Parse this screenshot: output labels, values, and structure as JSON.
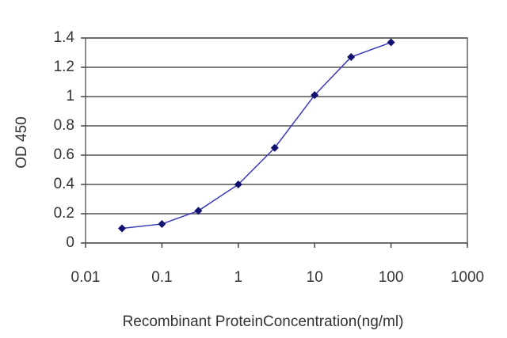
{
  "chart_data": {
    "type": "line",
    "x_label": "Recombinant ProteinConcentration(ng/ml)",
    "y_label": "OD 450",
    "xscale": "log",
    "x": [
      0.03,
      0.1,
      0.3,
      1,
      3,
      10,
      30,
      100
    ],
    "series": [
      {
        "color": "#3a3ab8",
        "marker_color": "#101070",
        "values": [
          0.1,
          0.13,
          0.22,
          0.4,
          0.65,
          1.01,
          1.27,
          1.37
        ]
      }
    ],
    "xlim": [
      0.01,
      1000
    ],
    "xticks": [
      0.01,
      0.1,
      1,
      10,
      100,
      1000
    ],
    "ylim": [
      0,
      1.4
    ],
    "yticks": [
      0,
      0.2,
      0.4,
      0.6,
      0.8,
      1,
      1.2,
      1.4
    ],
    "grid": true
  }
}
